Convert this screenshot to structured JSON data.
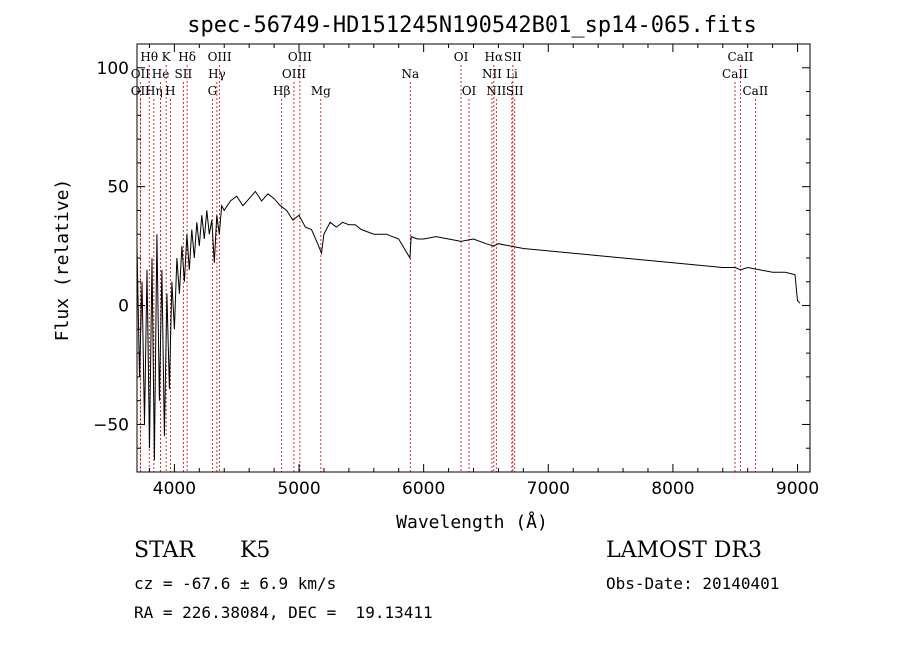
{
  "chart_data": {
    "type": "line",
    "title": "spec-56749-HD151245N190542B01_sp14-065.fits",
    "xlabel": "Wavelength (Å)",
    "ylabel": "Flux (relative)",
    "xlim": [
      3700,
      9100
    ],
    "ylim": [
      -70,
      110
    ],
    "x_ticks": [
      4000,
      5000,
      6000,
      7000,
      8000,
      9000
    ],
    "y_ticks": [
      -50,
      0,
      50,
      100
    ],
    "grid": false,
    "series": [
      {
        "name": "spectrum",
        "x": [
          3700,
          3720,
          3740,
          3760,
          3780,
          3800,
          3820,
          3840,
          3860,
          3880,
          3900,
          3920,
          3940,
          3960,
          3980,
          4000,
          4020,
          4040,
          4060,
          4080,
          4100,
          4120,
          4140,
          4160,
          4180,
          4200,
          4220,
          4240,
          4260,
          4280,
          4300,
          4320,
          4340,
          4360,
          4380,
          4400,
          4450,
          4500,
          4550,
          4600,
          4650,
          4700,
          4750,
          4800,
          4850,
          4900,
          4950,
          5000,
          5050,
          5100,
          5150,
          5180,
          5200,
          5250,
          5300,
          5350,
          5400,
          5450,
          5500,
          5600,
          5700,
          5800,
          5890,
          5900,
          5950,
          6000,
          6100,
          6200,
          6300,
          6400,
          6500,
          6563,
          6600,
          6700,
          6800,
          7000,
          7200,
          7400,
          7600,
          7800,
          8000,
          8200,
          8400,
          8500,
          8542,
          8600,
          8700,
          8800,
          8900,
          8980,
          9000,
          9020
        ],
        "values": [
          25,
          -30,
          10,
          -50,
          15,
          -60,
          20,
          -65,
          30,
          -40,
          15,
          -55,
          5,
          -35,
          10,
          -10,
          20,
          5,
          25,
          10,
          30,
          15,
          32,
          20,
          35,
          25,
          38,
          28,
          40,
          30,
          36,
          18,
          38,
          30,
          42,
          40,
          44,
          46,
          42,
          45,
          48,
          44,
          47,
          45,
          42,
          40,
          36,
          38,
          33,
          32,
          26,
          22,
          30,
          35,
          33,
          35,
          34,
          34,
          32,
          30,
          30,
          28,
          20,
          29,
          28,
          28,
          29,
          28,
          27,
          28,
          26,
          25,
          26,
          25,
          24,
          23,
          22,
          21,
          20,
          19,
          18,
          17,
          16,
          16,
          15,
          16,
          15,
          14,
          14,
          13,
          2,
          1
        ],
        "color": "#000000"
      }
    ],
    "line_markers": [
      {
        "label": "OII",
        "x": 3727,
        "row": 2
      },
      {
        "label": "OII",
        "x": 3727,
        "row": 3
      },
      {
        "label": "Hθ",
        "x": 3798,
        "row": 1
      },
      {
        "label": "Hη",
        "x": 3835,
        "row": 3
      },
      {
        "label": "He",
        "x": 3889,
        "row": 2
      },
      {
        "label": "K",
        "x": 3934,
        "row": 1
      },
      {
        "label": "H",
        "x": 3968,
        "row": 3
      },
      {
        "label": "SII",
        "x": 4072,
        "row": 2
      },
      {
        "label": "Hδ",
        "x": 4102,
        "row": 1
      },
      {
        "label": "G",
        "x": 4305,
        "row": 3
      },
      {
        "label": "OIII",
        "x": 4363,
        "row": 1
      },
      {
        "label": "Hγ",
        "x": 4341,
        "row": 2
      },
      {
        "label": "Hβ",
        "x": 4861,
        "row": 3
      },
      {
        "label": "OIII",
        "x": 4959,
        "row": 2
      },
      {
        "label": "OIII",
        "x": 5007,
        "row": 1
      },
      {
        "label": "Mg",
        "x": 5175,
        "row": 3
      },
      {
        "label": "Na",
        "x": 5893,
        "row": 2
      },
      {
        "label": "OI",
        "x": 6300,
        "row": 1
      },
      {
        "label": "OI",
        "x": 6364,
        "row": 3
      },
      {
        "label": "NII",
        "x": 6548,
        "row": 2
      },
      {
        "label": "Hα",
        "x": 6563,
        "row": 1
      },
      {
        "label": "NII",
        "x": 6583,
        "row": 3
      },
      {
        "label": "Li",
        "x": 6708,
        "row": 2
      },
      {
        "label": "SII",
        "x": 6716,
        "row": 1
      },
      {
        "label": "SII",
        "x": 6731,
        "row": 3
      },
      {
        "label": "CaII",
        "x": 8498,
        "row": 2
      },
      {
        "label": "CaII",
        "x": 8542,
        "row": 1
      },
      {
        "label": "CaII",
        "x": 8662,
        "row": 3
      }
    ]
  },
  "info": {
    "object_class": "STAR",
    "subclass": "K5",
    "survey": "LAMOST DR3",
    "cz": "cz = -67.6 ± 6.9 km/s",
    "obs_date": "Obs-Date: 20140401",
    "coords": "RA = 226.38084, DEC =  19.13411"
  }
}
